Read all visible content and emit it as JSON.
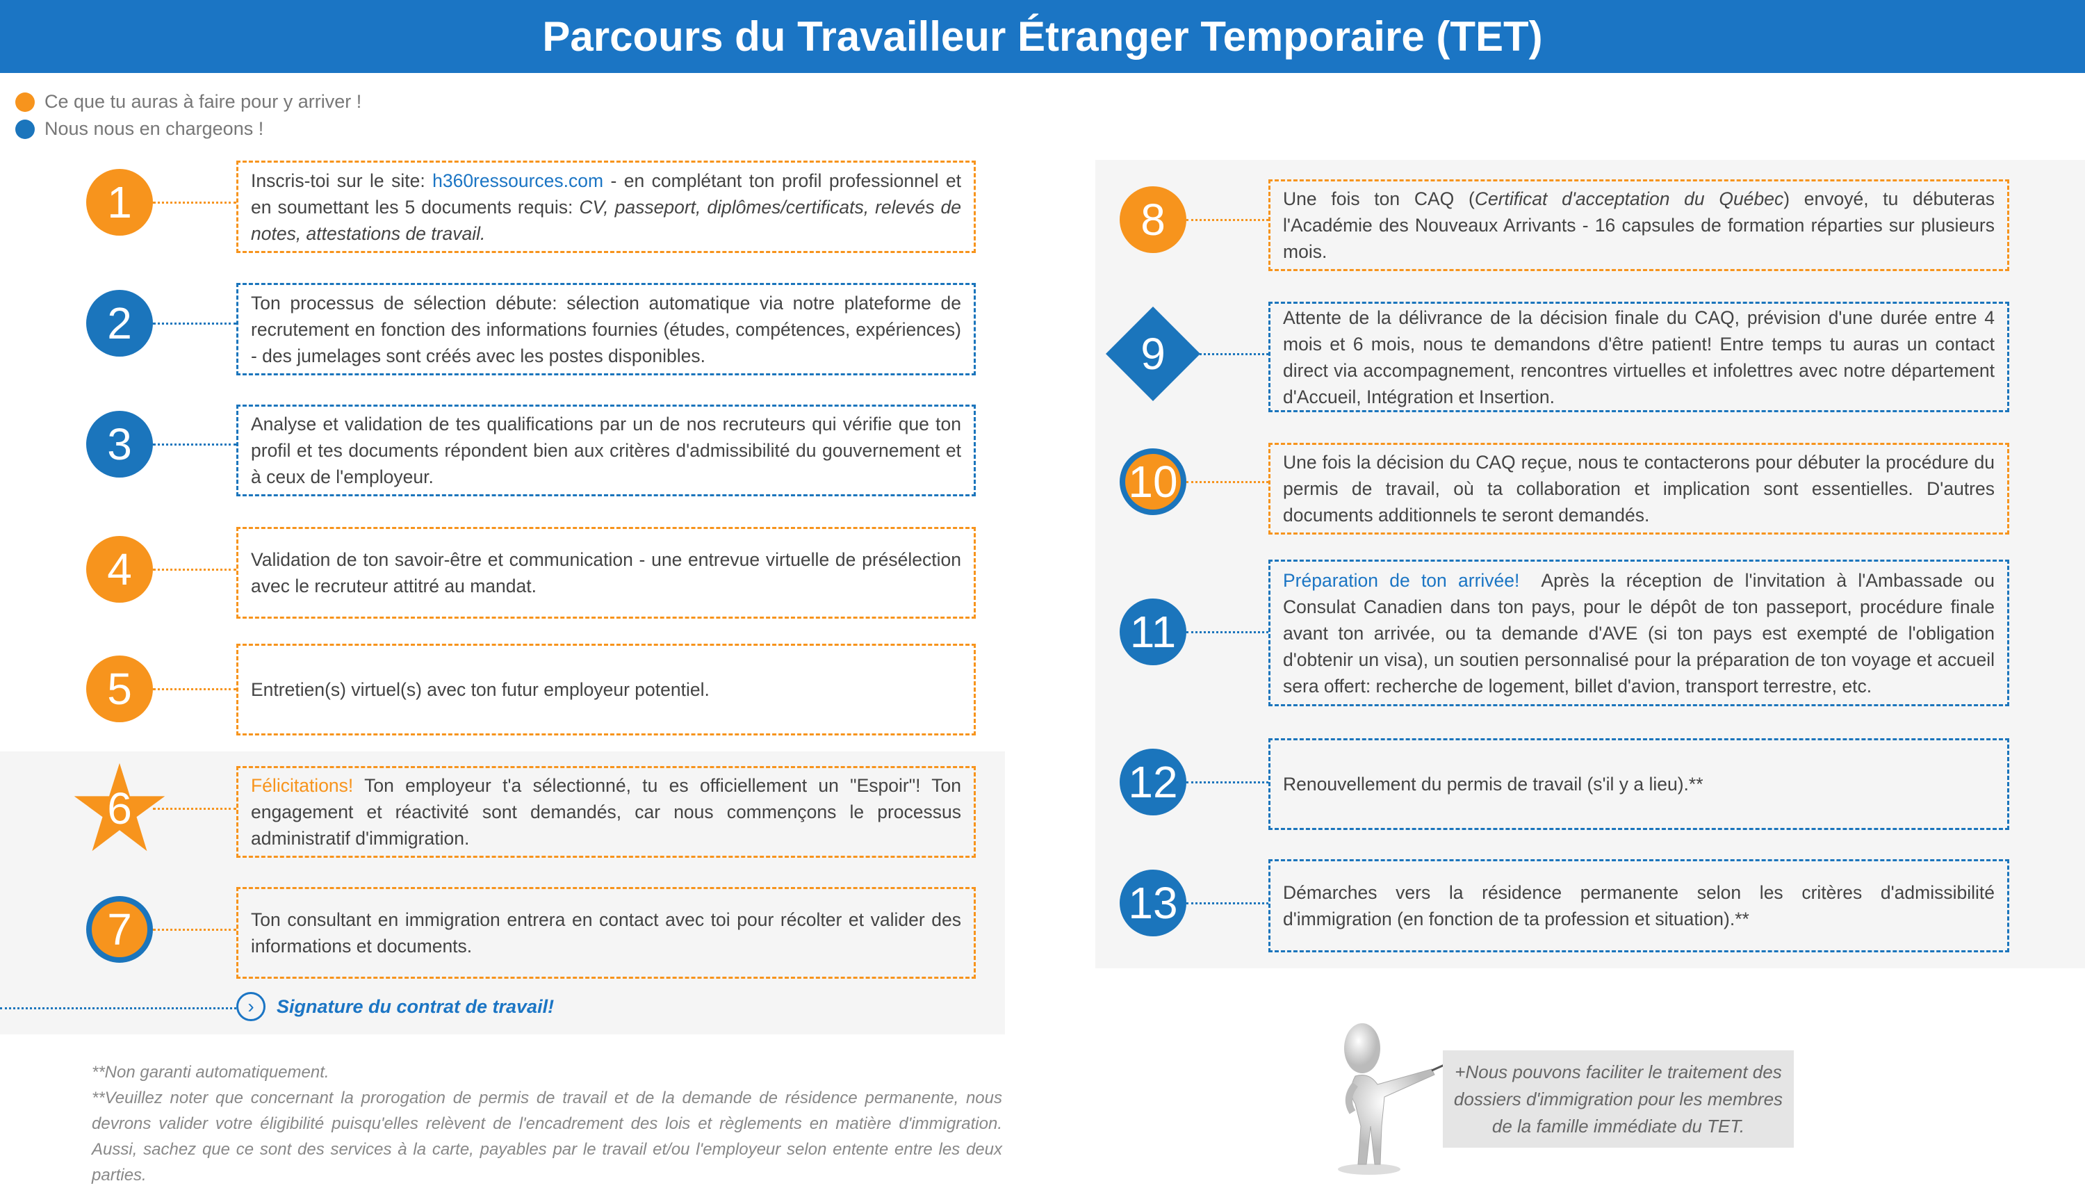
{
  "header": {
    "title": "Parcours du Travailleur Étranger Temporaire (TET)"
  },
  "colors": {
    "orange": "#f7941d",
    "blue": "#1b75bc",
    "header": "#1b75c4",
    "panel": "#f5f5f5"
  },
  "legend": [
    {
      "label": "Ce que tu auras à faire pour y arriver !",
      "color": "orange"
    },
    {
      "label": "Nous nous en chargeons !",
      "color": "blue"
    }
  ],
  "steps": [
    {
      "num": "1",
      "shape": "circle",
      "badge_color": "orange",
      "box_color": "orange",
      "parts": [
        {
          "text": "Inscris-toi sur le site: ",
          "style": ""
        },
        {
          "text": "h360ressources.com",
          "style": "link"
        },
        {
          "text": " - en complétant ton profil professionnel et en soumettant les 5 documents requis: ",
          "style": ""
        },
        {
          "text": "CV, passeport, diplômes/certificats, relevés de notes, attestations de travail.",
          "style": "it"
        }
      ]
    },
    {
      "num": "2",
      "shape": "circle",
      "badge_color": "blue",
      "box_color": "blue",
      "parts": [
        {
          "text": "Ton processus de sélection débute: sélection automatique via notre plateforme de recrutement en fonction des informations fournies (études, compétences, expériences) - des jumelages sont créés avec les postes disponibles.",
          "style": ""
        }
      ]
    },
    {
      "num": "3",
      "shape": "circle",
      "badge_color": "blue",
      "box_color": "blue",
      "parts": [
        {
          "text": "Analyse et validation de tes qualifications par un de nos recruteurs qui vérifie que ton profil et tes documents répondent bien aux critères d'admissibilité du gouvernement et à ceux de l'employeur.",
          "style": ""
        }
      ]
    },
    {
      "num": "4",
      "shape": "circle",
      "badge_color": "orange",
      "box_color": "orange",
      "parts": [
        {
          "text": "Validation de ton savoir-être et communication - une entrevue virtuelle de présélection avec le recruteur attitré au mandat.",
          "style": ""
        }
      ]
    },
    {
      "num": "5",
      "shape": "circle",
      "badge_color": "orange",
      "box_color": "orange",
      "parts": [
        {
          "text": "Entretien(s) virtuel(s) avec ton futur employeur potentiel.",
          "style": ""
        }
      ]
    },
    {
      "num": "6",
      "shape": "star",
      "badge_color": "orange",
      "box_color": "orange",
      "parts": [
        {
          "text": "Félicitations!",
          "style": "hl-o"
        },
        {
          "text": " Ton employeur t'a sélectionné, tu es officiellement un \"Espoir\"! Ton engagement et réactivité sont demandés, car nous commençons le processus administratif d'immigration.",
          "style": ""
        }
      ]
    },
    {
      "num": "7",
      "shape": "ring",
      "badge_color": "orange",
      "box_color": "orange",
      "parts": [
        {
          "text": "Ton consultant en immigration entrera en contact avec toi pour récolter et valider des informations et documents.",
          "style": ""
        }
      ]
    },
    {
      "num": "8",
      "shape": "circle",
      "badge_color": "orange",
      "box_color": "orange",
      "parts": [
        {
          "text": "Une fois ton CAQ (",
          "style": ""
        },
        {
          "text": "Certificat d'acceptation du Québec",
          "style": "it"
        },
        {
          "text": ") envoyé, tu débuteras l'Académie des Nouveaux Arrivants - 16 capsules de formation réparties sur plusieurs mois.",
          "style": ""
        }
      ]
    },
    {
      "num": "9",
      "shape": "diamond",
      "badge_color": "blue",
      "box_color": "blue",
      "parts": [
        {
          "text": "Attente de la délivrance de la décision finale du CAQ, prévision d'une durée entre 4 mois et 6 mois, nous te demandons d'être patient! Entre temps tu auras un contact direct via accompagnement, rencontres virtuelles et infolettres avec notre département d'Accueil, Intégration et Insertion.",
          "style": ""
        }
      ]
    },
    {
      "num": "10",
      "shape": "ring",
      "badge_color": "orange",
      "box_color": "orange",
      "parts": [
        {
          "text": "Une fois la décision du CAQ reçue, nous te contacterons pour débuter la procédure du permis de travail, où ta collaboration et implication sont essentielles. D'autres documents additionnels te seront demandés.",
          "style": ""
        }
      ]
    },
    {
      "num": "11",
      "shape": "circle",
      "badge_color": "blue",
      "box_color": "blue",
      "parts": [
        {
          "text": "Préparation de ton arrivée!",
          "style": "hl-b"
        },
        {
          "text": "  Après la réception de l'invitation à l'Ambassade ou Consulat Canadien dans ton pays, pour le dépôt de ton passeport, procédure finale avant ton arrivée, ou ta demande d'AVE (si ton pays est exempté de l'obligation d'obtenir un visa), un soutien personnalisé pour la préparation de ton voyage et accueil sera offert: recherche de logement, billet d'avion, transport terrestre, etc.",
          "style": ""
        }
      ]
    },
    {
      "num": "12",
      "shape": "circle",
      "badge_color": "blue",
      "box_color": "blue",
      "parts": [
        {
          "text": "Renouvellement du permis de travail (s'il y a lieu).**",
          "style": ""
        }
      ]
    },
    {
      "num": "13",
      "shape": "circle",
      "badge_color": "blue",
      "box_color": "blue",
      "parts": [
        {
          "text": "Démarches vers la résidence permanente selon les critères d'admissibilité d'immigration (en fonction de ta profession et situation).**",
          "style": ""
        }
      ]
    }
  ],
  "signature": {
    "label": "Signature du contrat de travail!",
    "icon": "chevron-right-circle-icon"
  },
  "footnotes": [
    "**Non garanti automatiquement.",
    "**Veuillez noter que concernant la prorogation de permis de travail et de la demande de résidence permanente, nous devrons valider votre éligibilité puisqu'elles relèvent de l'encadrement des lois et règlements en matière d'immigration. Aussi, sachez que ce sont des services à la carte, payables par le travail et/ou l'employeur selon entente entre les deux parties."
  ],
  "note": {
    "text": "+Nous pouvons faciliter le traitement des dossiers d'immigration pour les membres de la famille immédiate du TET.",
    "figure": "presenter-figure-icon"
  }
}
